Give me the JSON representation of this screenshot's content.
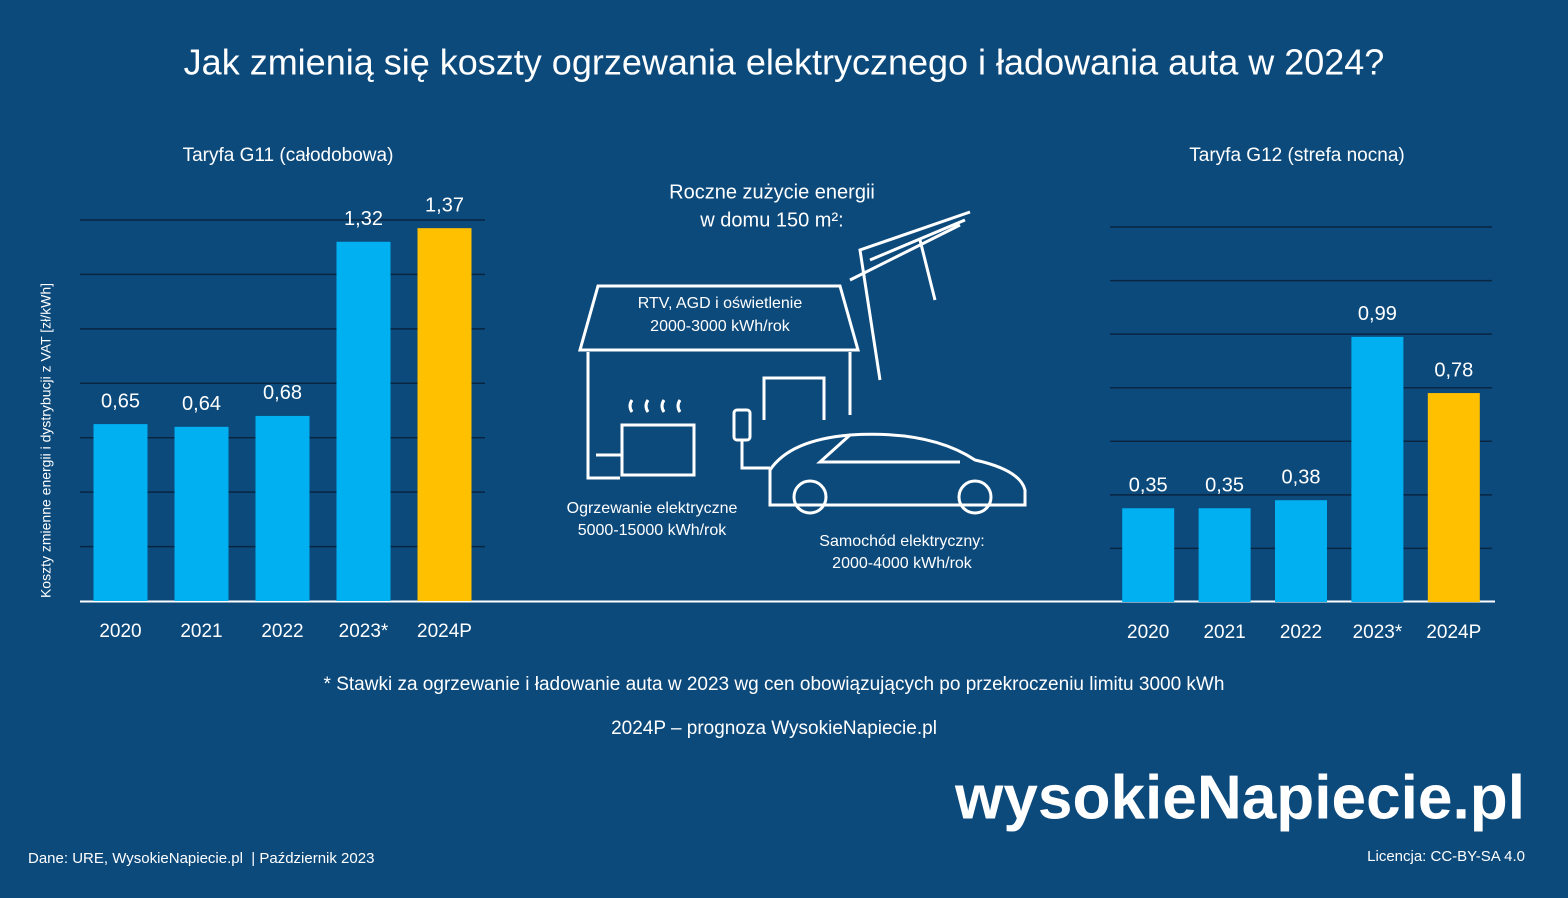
{
  "title": "Jak zmienią się koszty ogrzewania elektrycznego i ładowania auta w 2024?",
  "chart_data": [
    {
      "type": "bar",
      "title": "Taryfa G11 (całodobowa)",
      "y_label": "Koszty zmienne energii i dystrybucji z VAT [zł/kWh]",
      "categories": [
        "2020",
        "2021",
        "2022",
        "2023*",
        "2024P"
      ],
      "values": [
        0.65,
        0.64,
        0.68,
        1.32,
        1.37
      ],
      "value_labels": [
        "0,65",
        "0,64",
        "0,68",
        "1,32",
        "1,37"
      ],
      "colors": [
        "#00b0f0",
        "#00b0f0",
        "#00b0f0",
        "#00b0f0",
        "#ffc000"
      ],
      "ylim": [
        0,
        1.4
      ],
      "yticks": [
        0,
        0.2,
        0.4,
        0.6,
        0.8,
        1,
        1.2,
        1.4
      ],
      "grid": true
    },
    {
      "type": "bar",
      "title": "Taryfa G12 (strefa nocna)",
      "categories": [
        "2020",
        "2021",
        "2022",
        "2023*",
        "2024P"
      ],
      "values": [
        0.35,
        0.35,
        0.38,
        0.99,
        0.78
      ],
      "value_labels": [
        "0,35",
        "0,35",
        "0,38",
        "0,99",
        "0,78"
      ],
      "colors": [
        "#00b0f0",
        "#00b0f0",
        "#00b0f0",
        "#00b0f0",
        "#ffc000"
      ],
      "ylim": [
        0,
        1.4
      ],
      "yticks": [
        0,
        0.2,
        0.4,
        0.6,
        0.8,
        1,
        1.2,
        1.4
      ],
      "grid": true
    }
  ],
  "illustration": {
    "heading": [
      "Roczne zużycie energii",
      "w domu 150 m²:"
    ],
    "appliances": [
      "RTV, AGD i oświetlenie",
      "2000-3000 kWh/rok"
    ],
    "heating": [
      "Ogrzewanie elektryczne",
      "5000-15000 kWh/rok"
    ],
    "car": [
      "Samochód elektryczny:",
      "2000-4000 kWh/rok"
    ]
  },
  "notes": [
    "* Stawki za ogrzewanie i ładowanie auta w 2023 wg cen obowiązujących po przekroczeniu limitu 3000 kWh",
    "2024P – prognoza WysokieNapiecie.pl"
  ],
  "logo": "wysokieNapiecie.pl",
  "source": "Dane: URE, WysokieNapiecie.pl  | Październik 2023",
  "license": "Licencja: CC-BY-SA 4.0"
}
